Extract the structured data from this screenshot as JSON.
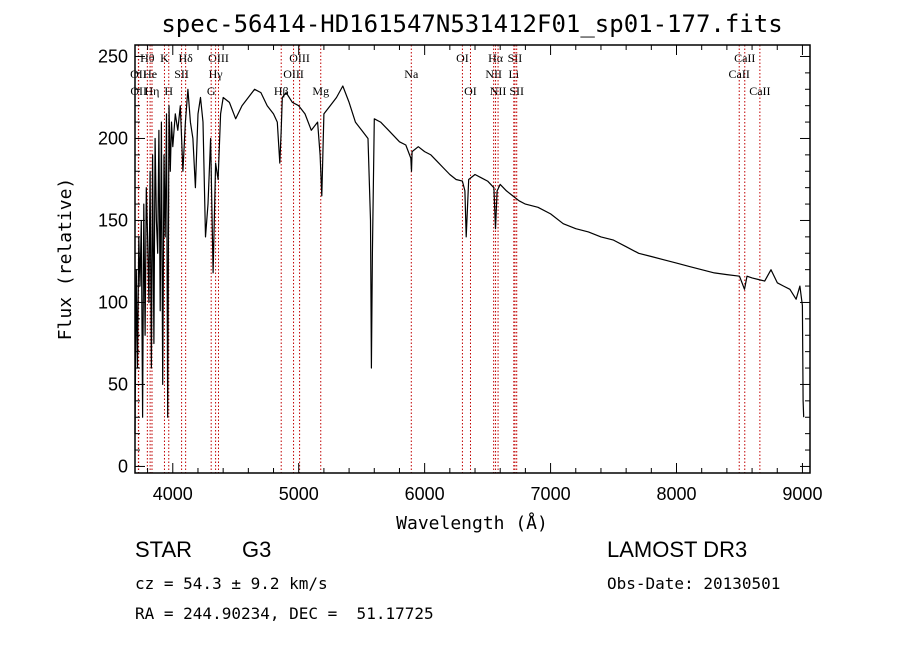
{
  "chart_data": {
    "type": "line",
    "title": "spec-56414-HD161547N531412F01_sp01-177.fits",
    "xlabel": "Wavelength (Å)",
    "ylabel": "Flux (relative)",
    "xlim": [
      3700,
      9060
    ],
    "ylim": [
      -4,
      257
    ],
    "x_ticks": [
      4000,
      5000,
      6000,
      7000,
      8000,
      9000
    ],
    "y_ticks": [
      0,
      50,
      100,
      150,
      200,
      250
    ],
    "series": [
      {
        "name": "flux",
        "x": [
          3700,
          3710,
          3720,
          3730,
          3740,
          3750,
          3760,
          3770,
          3780,
          3790,
          3800,
          3810,
          3820,
          3830,
          3840,
          3850,
          3860,
          3870,
          3880,
          3890,
          3900,
          3910,
          3920,
          3930,
          3940,
          3950,
          3960,
          3970,
          3980,
          3990,
          4000,
          4020,
          4040,
          4060,
          4080,
          4100,
          4120,
          4140,
          4160,
          4180,
          4200,
          4220,
          4240,
          4260,
          4280,
          4300,
          4320,
          4340,
          4360,
          4380,
          4400,
          4450,
          4500,
          4550,
          4600,
          4650,
          4700,
          4750,
          4800,
          4830,
          4850,
          4861,
          4870,
          4900,
          4950,
          5000,
          5050,
          5100,
          5150,
          5170,
          5183,
          5200,
          5250,
          5300,
          5350,
          5400,
          5450,
          5500,
          5550,
          5570,
          5577,
          5585,
          5600,
          5650,
          5700,
          5750,
          5800,
          5850,
          5890,
          5896,
          5900,
          5950,
          6000,
          6050,
          6100,
          6150,
          6200,
          6250,
          6300,
          6320,
          6330,
          6350,
          6400,
          6450,
          6500,
          6550,
          6563,
          6575,
          6600,
          6650,
          6700,
          6750,
          6800,
          6900,
          7000,
          7100,
          7200,
          7300,
          7400,
          7500,
          7600,
          7700,
          7800,
          7900,
          8000,
          8100,
          8200,
          8300,
          8400,
          8500,
          8540,
          8560,
          8600,
          8650,
          8700,
          8750,
          8800,
          8850,
          8900,
          8950,
          8980,
          9000,
          9005,
          9010
        ],
        "y": [
          20,
          120,
          60,
          140,
          110,
          150,
          30,
          160,
          80,
          170,
          140,
          100,
          180,
          60,
          190,
          75,
          200,
          150,
          130,
          205,
          95,
          210,
          50,
          190,
          140,
          215,
          30,
          220,
          180,
          210,
          195,
          215,
          205,
          220,
          180,
          210,
          230,
          210,
          200,
          170,
          215,
          225,
          210,
          140,
          160,
          200,
          118,
          185,
          175,
          215,
          225,
          222,
          212,
          220,
          225,
          230,
          228,
          220,
          215,
          210,
          185,
          205,
          225,
          228,
          222,
          220,
          215,
          205,
          210,
          190,
          165,
          215,
          220,
          225,
          232,
          222,
          210,
          205,
          200,
          150,
          60,
          130,
          212,
          210,
          206,
          202,
          198,
          196,
          188,
          180,
          192,
          195,
          192,
          190,
          186,
          182,
          178,
          175,
          174,
          168,
          140,
          175,
          178,
          176,
          174,
          170,
          145,
          168,
          172,
          168,
          165,
          162,
          160,
          158,
          154,
          148,
          145,
          143,
          140,
          138,
          134,
          130,
          128,
          126,
          124,
          122,
          120,
          118,
          117,
          116,
          108,
          116,
          115,
          114,
          113,
          120,
          112,
          110,
          108,
          102,
          110,
          98,
          40,
          30
        ]
      }
    ],
    "spectral_lines": [
      {
        "label": "Hθ",
        "x": 3798,
        "row": 1
      },
      {
        "label": "K",
        "x": 3934,
        "row": 1
      },
      {
        "label": "Hδ",
        "x": 4102,
        "row": 1
      },
      {
        "label": "OII",
        "x": 3727,
        "row": 2
      },
      {
        "label": "He",
        "x": 3820,
        "row": 2
      },
      {
        "label": "SII",
        "x": 4070,
        "row": 2
      },
      {
        "label": "OII",
        "x": 3729,
        "row": 3
      },
      {
        "label": "Hη",
        "x": 3835,
        "row": 3
      },
      {
        "label": "H",
        "x": 3968,
        "row": 3
      },
      {
        "label": "OIII",
        "x": 4363,
        "row": 1
      },
      {
        "label": "Hγ",
        "x": 4340,
        "row": 2
      },
      {
        "label": "G",
        "x": 4305,
        "row": 3
      },
      {
        "label": "OIII",
        "x": 5007,
        "row": 1
      },
      {
        "label": "OIII",
        "x": 4959,
        "row": 2
      },
      {
        "label": "Hβ",
        "x": 4861,
        "row": 3
      },
      {
        "label": "Mg",
        "x": 5175,
        "row": 3
      },
      {
        "label": "Na",
        "x": 5894,
        "row": 2
      },
      {
        "label": "OI",
        "x": 6300,
        "row": 1
      },
      {
        "label": "OI",
        "x": 6364,
        "row": 3
      },
      {
        "label": "Hα",
        "x": 6563,
        "row": 1
      },
      {
        "label": "SII",
        "x": 6717,
        "row": 1
      },
      {
        "label": "NII",
        "x": 6548,
        "row": 2
      },
      {
        "label": "Li",
        "x": 6708,
        "row": 2
      },
      {
        "label": "NII",
        "x": 6583,
        "row": 3
      },
      {
        "label": "SII",
        "x": 6731,
        "row": 3
      },
      {
        "label": "CaII",
        "x": 8542,
        "row": 1
      },
      {
        "label": "CaII",
        "x": 8498,
        "row": 2
      },
      {
        "label": "CaII",
        "x": 8662,
        "row": 3
      }
    ],
    "line_color": "#c00000"
  },
  "info": {
    "object_class": "STAR",
    "subclass": "G3",
    "survey": "LAMOST DR3",
    "redshift": "cz = 54.3 ± 9.2 km/s",
    "obs_date": "Obs-Date: 20130501",
    "coords": "RA = 244.90234, DEC =  51.17725"
  }
}
